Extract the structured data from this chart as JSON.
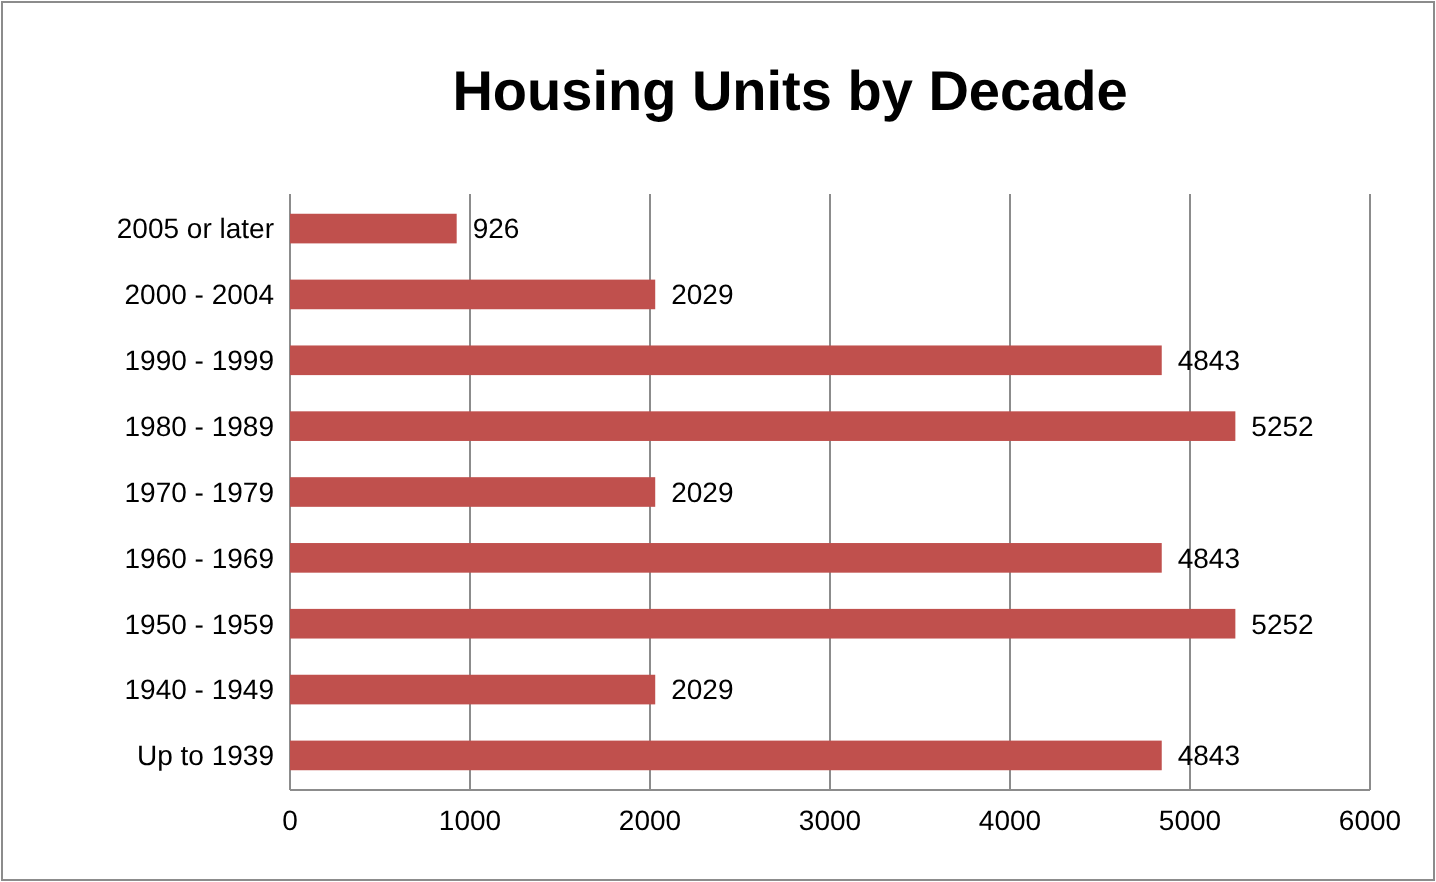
{
  "chart_data": {
    "type": "bar",
    "title": "Housing Units by Decade",
    "orientation": "horizontal",
    "categories": [
      "2005 or later",
      "2000 - 2004",
      "1990 - 1999",
      "1980 - 1989",
      "1970 - 1979",
      "1960 - 1969",
      "1950 - 1959",
      "1940 - 1949",
      "Up to 1939"
    ],
    "values": [
      926,
      2029,
      4843,
      5252,
      2029,
      4843,
      5252,
      2029,
      4843
    ],
    "color": "#c0504d",
    "xlim": [
      0,
      6000
    ],
    "xticks": [
      0,
      1000,
      2000,
      3000,
      4000,
      5000,
      6000
    ],
    "grid": "x",
    "data_labels": true
  }
}
